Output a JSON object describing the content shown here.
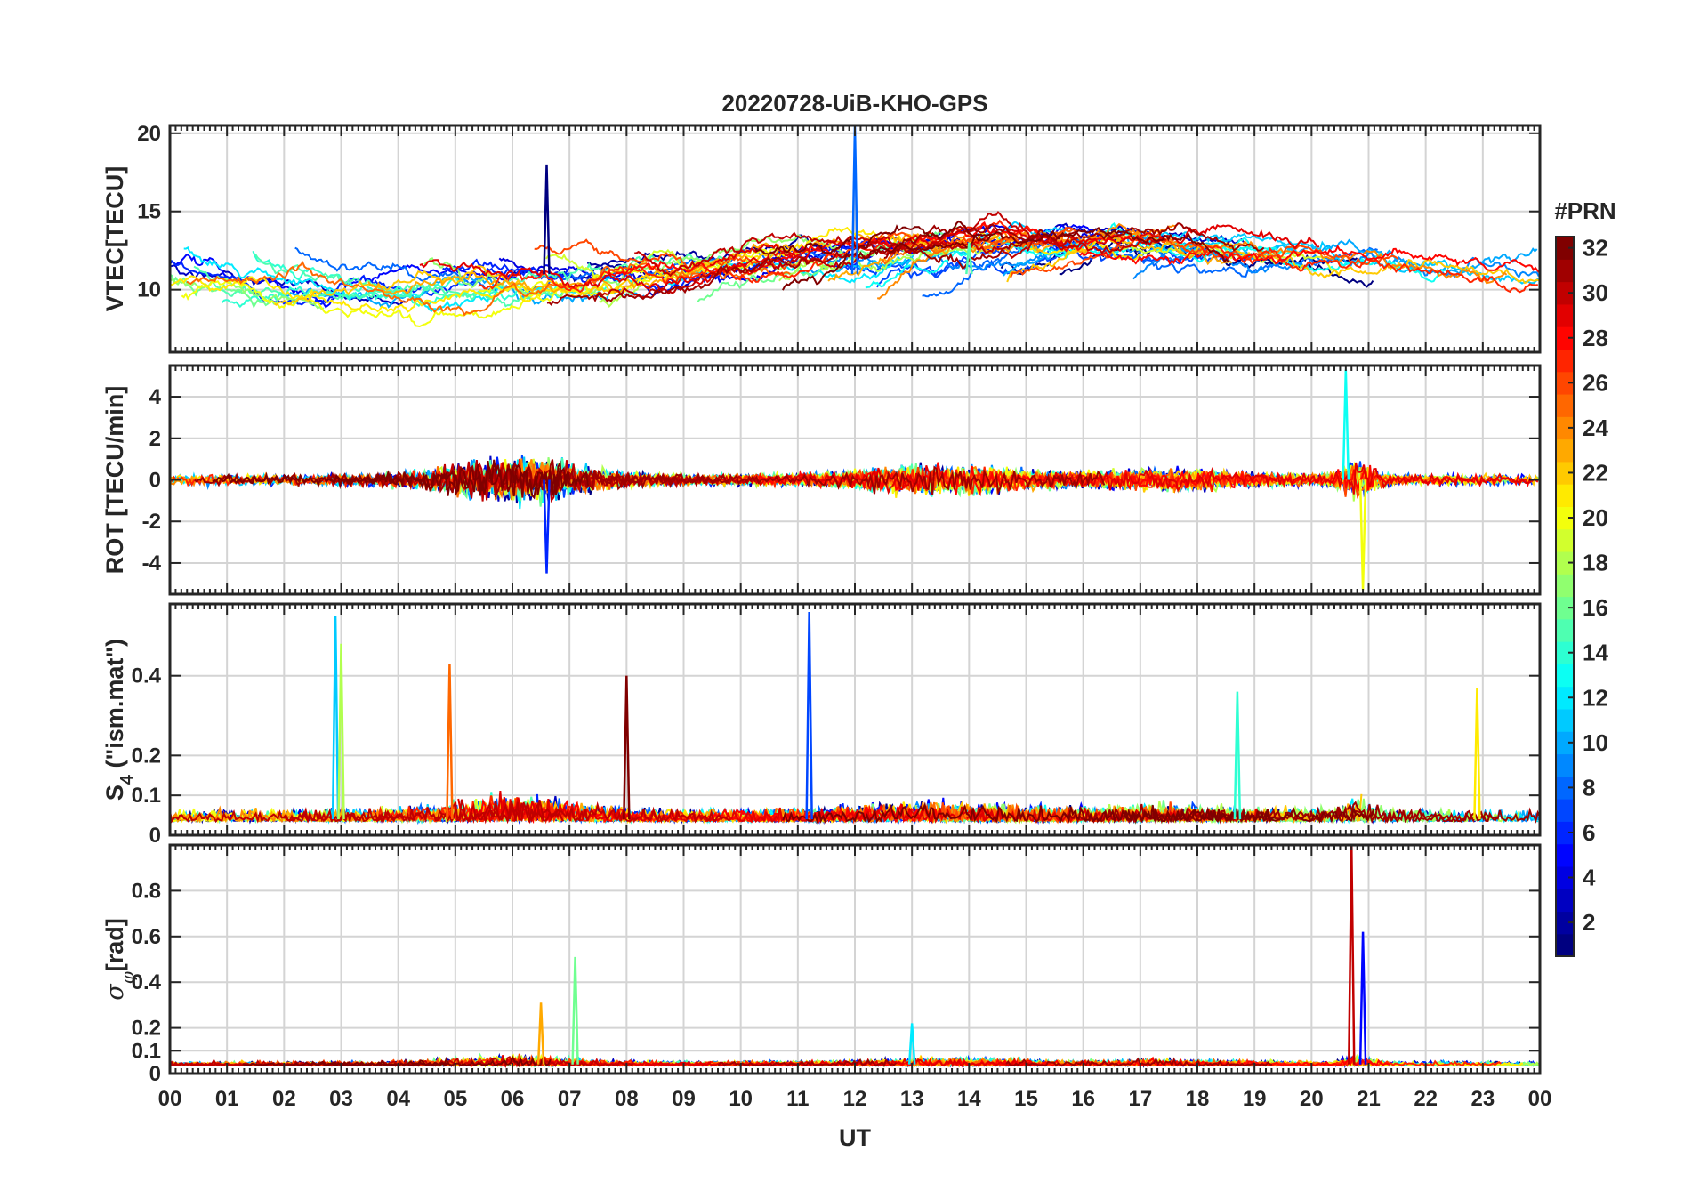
{
  "chart_data": {
    "type": "line",
    "title": "20220728-UiB-KHO-GPS",
    "xlabel": "UT",
    "x_range_hours": [
      0,
      24
    ],
    "x_tick_labels": [
      "00",
      "01",
      "02",
      "03",
      "04",
      "05",
      "06",
      "07",
      "08",
      "09",
      "10",
      "11",
      "12",
      "13",
      "14",
      "15",
      "16",
      "17",
      "18",
      "19",
      "20",
      "21",
      "22",
      "23",
      "00"
    ],
    "grid": true,
    "series_count": 32,
    "color_by": "PRN",
    "colorbar": {
      "title": "#PRN",
      "range": [
        1,
        32
      ],
      "tick_labels": [
        "2",
        "4",
        "6",
        "8",
        "10",
        "12",
        "14",
        "16",
        "18",
        "20",
        "22",
        "24",
        "26",
        "28",
        "30",
        "32"
      ],
      "colormap": "jet",
      "placement": "right"
    },
    "panels": [
      {
        "key": "vtec",
        "ylabel": "VTEC[TECU]",
        "ylim": [
          6,
          20.5
        ],
        "yticks": [
          10,
          15,
          20
        ],
        "ytick_labels": [
          "10",
          "15",
          "20"
        ],
        "approx_features": [
          {
            "x_hours": 6.6,
            "y": 18.0,
            "note": "peak"
          },
          {
            "x_hours": 12.0,
            "y": 20.5,
            "note": "segment entering from top"
          },
          {
            "x_hours": 14.0,
            "y": 13.0,
            "note": "daytime plateau"
          }
        ]
      },
      {
        "key": "rot",
        "ylabel": "ROT [TECU/min]",
        "ylim": [
          -5.5,
          5.5
        ],
        "yticks": [
          -4,
          -2,
          0,
          2,
          4
        ],
        "ytick_labels": [
          "-4",
          "-2",
          "0",
          "2",
          "4"
        ],
        "approx_features": [
          {
            "x_hours": 6.6,
            "y": -4.5,
            "note": "minimum"
          },
          {
            "x_hours": 20.6,
            "y": 5.3,
            "note": "maximum"
          },
          {
            "x_hours": 20.9,
            "y": -5.3,
            "note": "minimum"
          }
        ]
      },
      {
        "key": "s4",
        "ylabel": "S4 (\"ism.mat\")",
        "ylabel_main": "S",
        "ylabel_sub": "4",
        "ylabel_rest": " (\"ism.mat\")",
        "ylim": [
          0,
          0.58
        ],
        "yticks": [
          0,
          0.1,
          0.2,
          0.4
        ],
        "ytick_labels": [
          "0",
          "0.1",
          "0.2",
          "0.4"
        ],
        "approx_features": [
          {
            "x_hours": 2.9,
            "y": 0.55,
            "note": "spike"
          },
          {
            "x_hours": 3.0,
            "y": 0.48,
            "note": "spike"
          },
          {
            "x_hours": 4.9,
            "y": 0.43,
            "note": "spike"
          },
          {
            "x_hours": 8.0,
            "y": 0.4,
            "note": "spike"
          },
          {
            "x_hours": 11.2,
            "y": 0.56,
            "note": "spike"
          },
          {
            "x_hours": 18.7,
            "y": 0.36,
            "note": "spike"
          },
          {
            "x_hours": 22.9,
            "y": 0.37,
            "note": "spike"
          }
        ]
      },
      {
        "key": "sigma_phi",
        "ylabel": "σφ[rad]",
        "ylabel_main": "σ",
        "ylabel_sub": "φ",
        "ylabel_rest": "[rad]",
        "ylim": [
          0,
          1.0
        ],
        "yticks": [
          0,
          0.1,
          0.2,
          0.4,
          0.6,
          0.8
        ],
        "ytick_labels": [
          "0",
          "0.1",
          "0.2",
          "0.4",
          "0.6",
          "0.8"
        ],
        "approx_features": [
          {
            "x_hours": 7.1,
            "y": 0.51,
            "note": "spike"
          },
          {
            "x_hours": 6.5,
            "y": 0.31,
            "note": "spike"
          },
          {
            "x_hours": 20.7,
            "y": 1.0,
            "note": "spike"
          },
          {
            "x_hours": 20.9,
            "y": 0.62,
            "note": "spike"
          },
          {
            "x_hours": 13.0,
            "y": 0.22,
            "note": "spike"
          }
        ]
      }
    ]
  }
}
